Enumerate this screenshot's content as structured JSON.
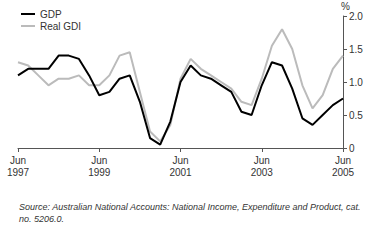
{
  "chart_data": {
    "type": "line",
    "ylabel": "%",
    "source": "Source: Australian National Accounts: National Income, Expenditure and Product, cat. no. 5206.0.",
    "categories": [
      "Jun\n1997",
      null,
      null,
      null,
      null,
      null,
      null,
      null,
      "Jun\n1999",
      null,
      null,
      null,
      null,
      null,
      null,
      null,
      "Jun\n2001",
      null,
      null,
      null,
      null,
      null,
      null,
      null,
      "Jun\n2003",
      null,
      null,
      null,
      null,
      null,
      null,
      null,
      "Jun\n2005"
    ],
    "series": [
      {
        "name": "GDP",
        "color": "#000000",
        "values": [
          1.1,
          1.2,
          1.2,
          1.2,
          1.4,
          1.4,
          1.35,
          1.1,
          0.8,
          0.85,
          1.05,
          1.1,
          0.7,
          0.15,
          0.05,
          0.4,
          1.0,
          1.25,
          1.1,
          1.05,
          0.95,
          0.85,
          0.55,
          0.5,
          0.95,
          1.3,
          1.25,
          0.9,
          0.45,
          0.35,
          0.5,
          0.65,
          0.75
        ]
      },
      {
        "name": "Real GDI",
        "color": "#bbbbbb",
        "values": [
          1.3,
          1.25,
          1.1,
          0.95,
          1.05,
          1.05,
          1.1,
          0.95,
          0.95,
          1.1,
          1.4,
          1.45,
          0.85,
          0.25,
          0.1,
          0.35,
          1.05,
          1.35,
          1.2,
          1.1,
          1.0,
          0.9,
          0.7,
          0.65,
          1.05,
          1.55,
          1.8,
          1.5,
          0.95,
          0.6,
          0.8,
          1.2,
          1.4
        ]
      }
    ],
    "ylim": [
      0,
      2
    ],
    "yticks": [
      0,
      0.5,
      {
        "value": 1,
        "label": "1.0"
      },
      1.5,
      {
        "value": 2,
        "label": "2.0"
      }
    ],
    "grid": false,
    "legend": "upper left"
  }
}
